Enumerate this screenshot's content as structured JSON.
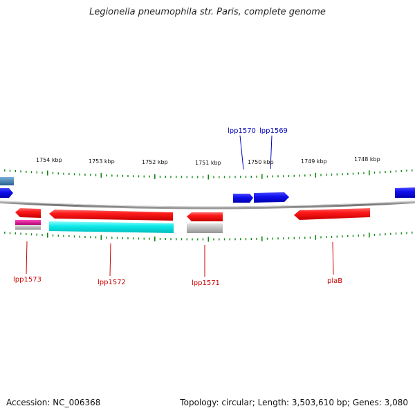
{
  "title": "Legionella pneumophila str. Paris, complete genome",
  "footer": {
    "accession": "Accession: NC_006368",
    "topology": "Topology: circular; Length: 3,503,610 bp; Genes: 3,080"
  },
  "colors": {
    "ruler": "#118811",
    "forward_gene": "#1010ee",
    "reverse_gene": "#ee1111",
    "forward_label": "#0000bb",
    "reverse_label": "#cc0000",
    "backbone": "#777777",
    "cds_cyan": "#00e5e5",
    "cds_magenta": "#e0109a",
    "cds_gray": "#aaaaaa",
    "steelblue": "#3a7ab0"
  },
  "ruler": {
    "unit": "kbp",
    "ticks": [
      {
        "label": "1754 kbp"
      },
      {
        "label": "1753 kbp"
      },
      {
        "label": "1752 kbp"
      },
      {
        "label": "1751 kbp"
      },
      {
        "label": "1750 kbp"
      },
      {
        "label": "1749 kbp"
      },
      {
        "label": "1748 kbp"
      }
    ]
  },
  "genes": {
    "forward": [
      {
        "label": "lpp1570"
      },
      {
        "label": "lpp1569"
      }
    ],
    "reverse": [
      {
        "label": "lpp1573"
      },
      {
        "label": "lpp1572"
      },
      {
        "label": "lpp1571"
      },
      {
        "label": "plaB"
      }
    ]
  }
}
